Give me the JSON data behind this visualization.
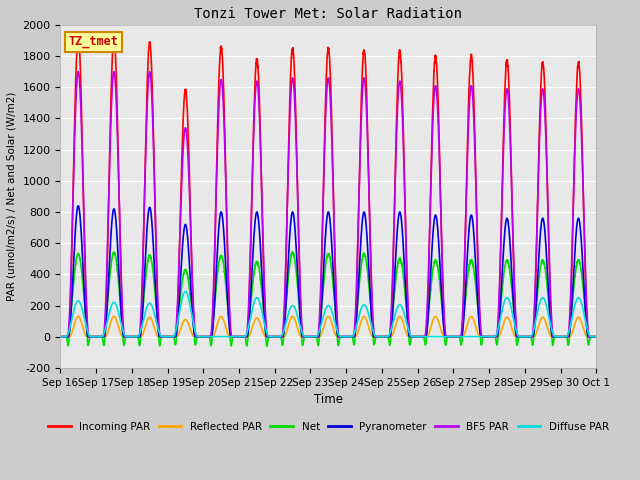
{
  "title": "Tonzi Tower Met: Solar Radiation",
  "ylabel": "PAR (umol/m2/s) / Net and Solar (W/m2)",
  "xlabel": "Time",
  "ylim": [
    -200,
    2000
  ],
  "yticks": [
    -200,
    0,
    200,
    400,
    600,
    800,
    1000,
    1200,
    1400,
    1600,
    1800,
    2000
  ],
  "xtick_labels": [
    "Sep 16",
    "Sep 17",
    "Sep 18",
    "Sep 19",
    "Sep 20",
    "Sep 21",
    "Sep 22",
    "Sep 23",
    "Sep 24",
    "Sep 25",
    "Sep 26",
    "Sep 27",
    "Sep 28",
    "Sep 29",
    "Sep 30",
    "Oct 1"
  ],
  "series": [
    {
      "name": "Incoming PAR",
      "color": "#ff0000",
      "lw": 1.2
    },
    {
      "name": "Reflected PAR",
      "color": "#ffa500",
      "lw": 1.2
    },
    {
      "name": "Net",
      "color": "#00dd00",
      "lw": 1.2
    },
    {
      "name": "Pyranometer",
      "color": "#0000dd",
      "lw": 1.2
    },
    {
      "name": "BF5 PAR",
      "color": "#bb00ee",
      "lw": 1.2
    },
    {
      "name": "Diffuse PAR",
      "color": "#00dddd",
      "lw": 1.2
    }
  ],
  "label_box": "TZ_tmet",
  "label_box_facecolor": "#ffff99",
  "label_box_edgecolor": "#cc8800",
  "n_days": 15,
  "peaks": {
    "incoming_par": [
      1920,
      1910,
      1890,
      1580,
      1860,
      1780,
      1850,
      1850,
      1840,
      1830,
      1800,
      1800,
      1770,
      1760,
      1760
    ],
    "reflected_par": [
      130,
      130,
      125,
      110,
      130,
      120,
      130,
      130,
      130,
      130,
      130,
      130,
      125,
      125,
      125
    ],
    "net": [
      530,
      540,
      520,
      430,
      520,
      480,
      540,
      530,
      530,
      500,
      490,
      490,
      490,
      490,
      490
    ],
    "net_negative": [
      -80,
      -80,
      -80,
      -70,
      -80,
      -80,
      -80,
      -80,
      -75,
      -75,
      -75,
      -75,
      -75,
      -75,
      -75
    ],
    "pyranometer": [
      840,
      820,
      830,
      720,
      800,
      800,
      800,
      800,
      800,
      800,
      780,
      780,
      760,
      760,
      760
    ],
    "bf5_par": [
      1700,
      1700,
      1700,
      1340,
      1650,
      1640,
      1660,
      1660,
      1660,
      1640,
      1610,
      1610,
      1590,
      1590,
      1590
    ],
    "diffuse_par": [
      230,
      220,
      215,
      290,
      0,
      250,
      200,
      200,
      205,
      205,
      0,
      0,
      250,
      250,
      250
    ]
  },
  "figsize": [
    6.4,
    4.8
  ],
  "dpi": 100
}
